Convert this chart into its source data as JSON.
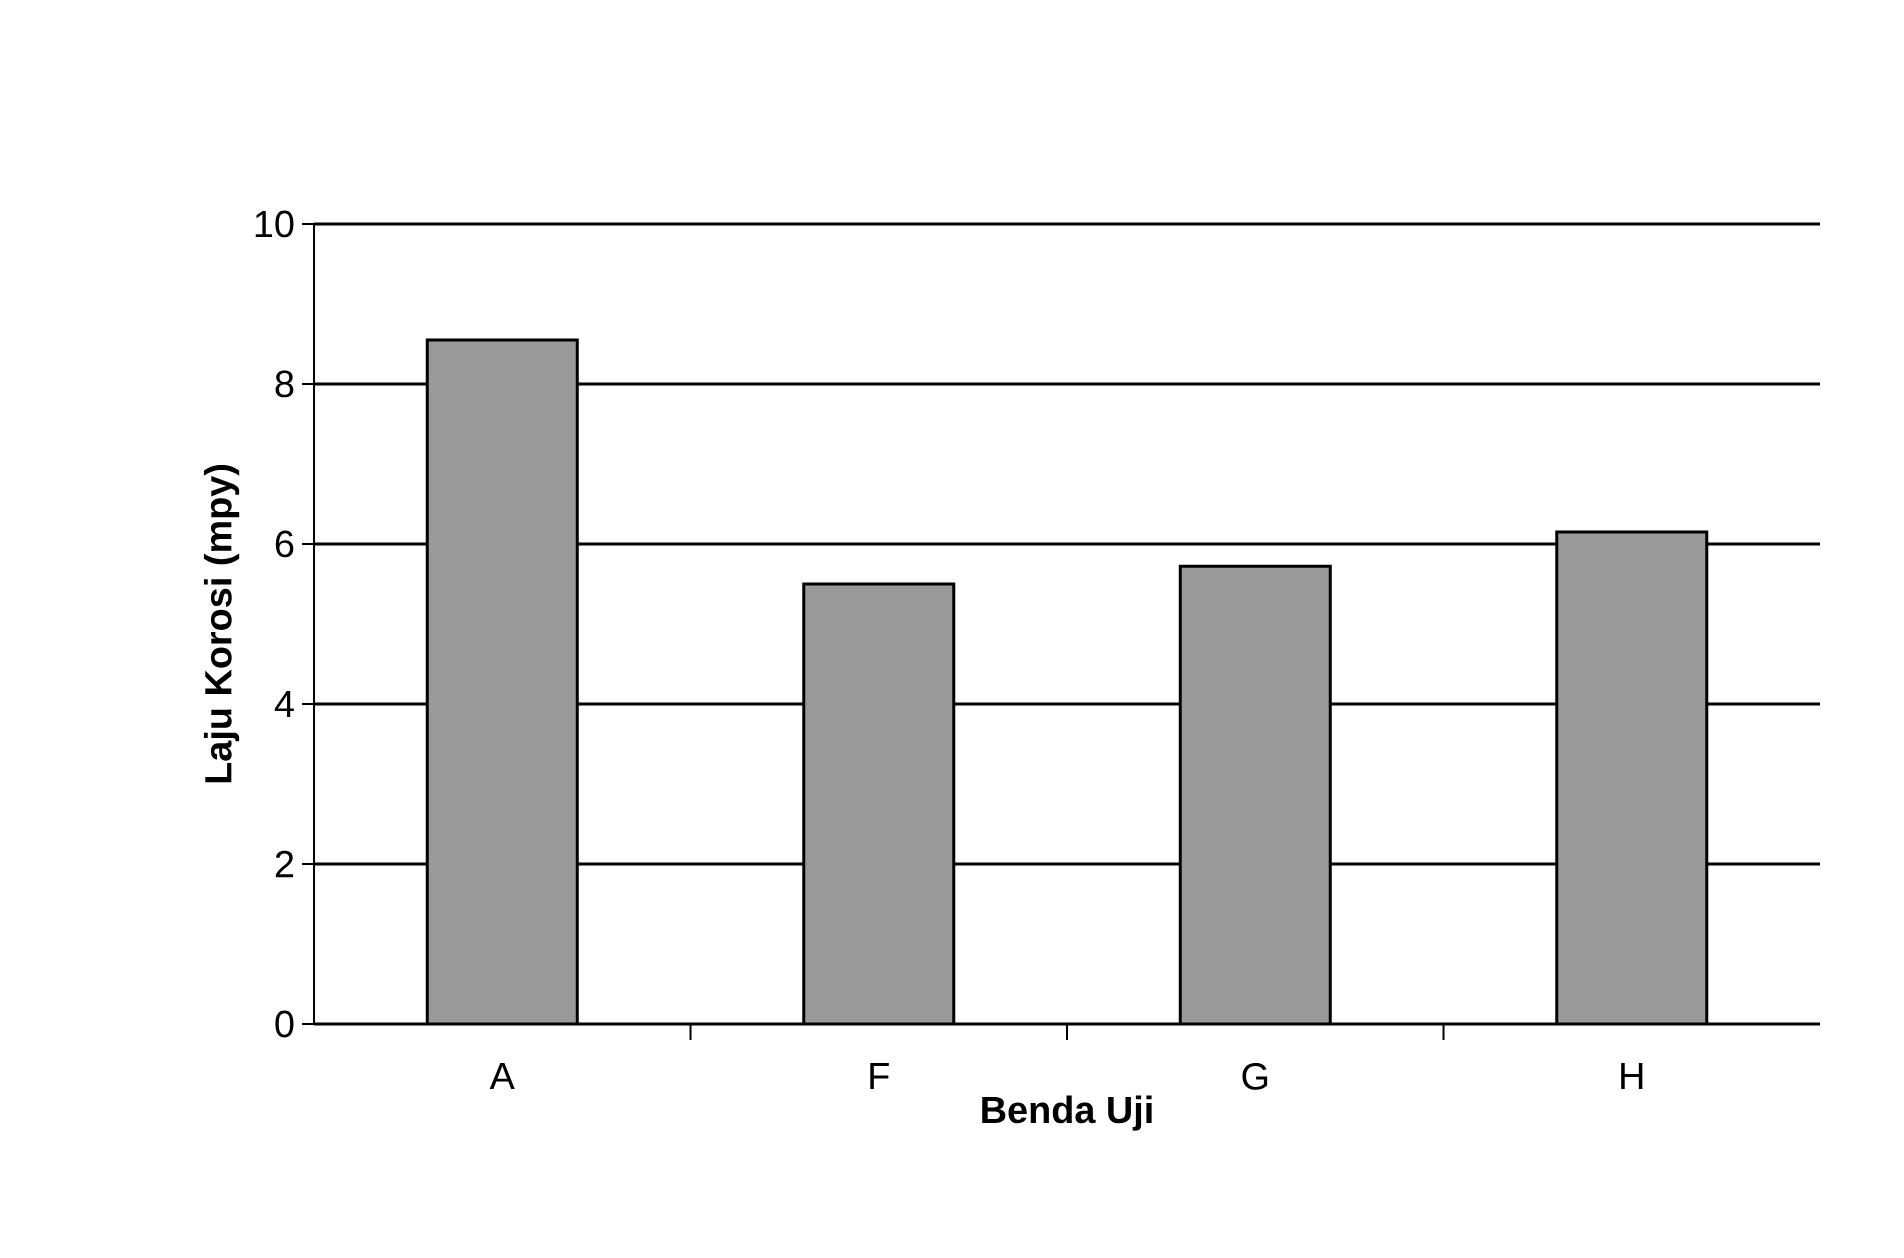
{
  "chart_data": {
    "type": "bar",
    "xlabel": "Benda Uji",
    "ylabel": "Laju Korosi (mpy)",
    "categories": [
      "A",
      "F",
      "G",
      "H"
    ],
    "values": [
      8.55,
      5.5,
      5.72,
      6.15
    ],
    "color": "#9a9a9a",
    "ylim": [
      0,
      10
    ],
    "yticks": [
      0,
      2,
      4,
      6,
      8,
      10
    ],
    "grid": "y"
  }
}
